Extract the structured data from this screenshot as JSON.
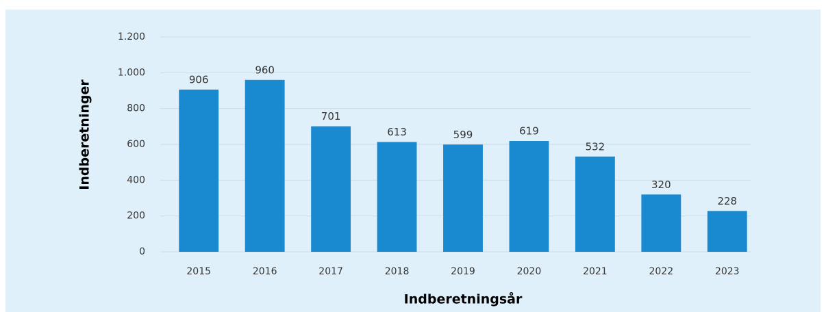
{
  "chart_data": {
    "type": "bar",
    "x_label": "Indberetningsår",
    "y_label": "Indberetninger",
    "categories": [
      "2015",
      "2016",
      "2017",
      "2018",
      "2019",
      "2020",
      "2021",
      "2022",
      "2023"
    ],
    "values": [
      906,
      960,
      701,
      613,
      599,
      619,
      532,
      320,
      228
    ],
    "color": "#1a8ad0",
    "ylim": [
      0,
      1200
    ],
    "yticks": [
      0,
      200,
      400,
      600,
      800,
      {
        "value": 1000,
        "label": "1.000"
      },
      {
        "value": 1200,
        "label": "1.200"
      }
    ],
    "grid": true
  }
}
